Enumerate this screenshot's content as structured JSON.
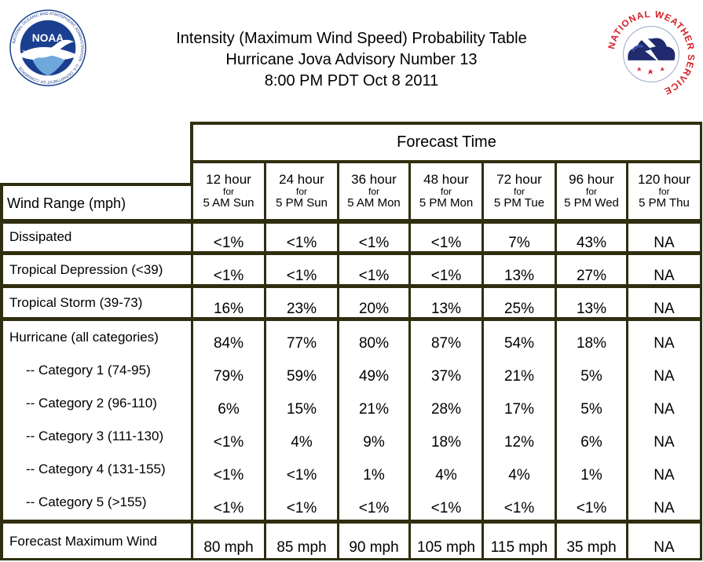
{
  "titles": {
    "line1": "Intensity (Maximum Wind Speed) Probability Table",
    "line2": "Hurricane Jova Advisory Number 13",
    "line3": "8:00 PM PDT Oct 8 2011"
  },
  "logos": {
    "left": {
      "text": "NOAA",
      "ring_text": "NATIONAL OCEANIC AND ATMOSPHERIC ADMINISTRATION · U.S. DEPARTMENT OF COMMERCE"
    },
    "right": {
      "ring_text": "NATIONAL WEATHER SERVICE"
    }
  },
  "colors": {
    "border": "#2f2f10",
    "noaa_blue": "#1a3f8f",
    "nws_red": "#d4202a",
    "nws_navy": "#1f2b6e"
  },
  "table": {
    "forecast_time_label": "Forecast Time",
    "wind_range_label": "Wind Range (mph)",
    "columns": [
      {
        "hours": "12 hour",
        "for": "for",
        "when": "5 AM Sun"
      },
      {
        "hours": "24 hour",
        "for": "for",
        "when": "5 PM Sun"
      },
      {
        "hours": "36 hour",
        "for": "for",
        "when": "5 AM Mon"
      },
      {
        "hours": "48 hour",
        "for": "for",
        "when": "5 PM Mon"
      },
      {
        "hours": "72 hour",
        "for": "for",
        "when": "5 PM Tue"
      },
      {
        "hours": "96 hour",
        "for": "for",
        "when": "5 PM Wed"
      },
      {
        "hours": "120 hour",
        "for": "for",
        "when": "5 PM Thu"
      }
    ],
    "rows": [
      {
        "label": "Dissipated",
        "values": [
          "<1%",
          "<1%",
          "<1%",
          "<1%",
          "7%",
          "43%",
          "NA"
        ]
      },
      {
        "label": "Tropical Depression (<39)",
        "values": [
          "<1%",
          "<1%",
          "<1%",
          "<1%",
          "13%",
          "27%",
          "NA"
        ]
      },
      {
        "label": "Tropical Storm (39-73)",
        "values": [
          "16%",
          "23%",
          "20%",
          "13%",
          "25%",
          "13%",
          "NA"
        ]
      },
      {
        "label": "Hurricane (all categories)",
        "values": [
          "84%",
          "77%",
          "80%",
          "87%",
          "54%",
          "18%",
          "NA"
        ]
      },
      {
        "label": "-- Category 1 (74-95)",
        "values": [
          "79%",
          "59%",
          "49%",
          "37%",
          "21%",
          "5%",
          "NA"
        ]
      },
      {
        "label": "-- Category 2 (96-110)",
        "values": [
          "6%",
          "15%",
          "21%",
          "28%",
          "17%",
          "5%",
          "NA"
        ]
      },
      {
        "label": "-- Category 3 (111-130)",
        "values": [
          "<1%",
          "4%",
          "9%",
          "18%",
          "12%",
          "6%",
          "NA"
        ]
      },
      {
        "label": "-- Category 4 (131-155)",
        "values": [
          "<1%",
          "<1%",
          "1%",
          "4%",
          "4%",
          "1%",
          "NA"
        ]
      },
      {
        "label": "-- Category 5 (>155)",
        "values": [
          "<1%",
          "<1%",
          "<1%",
          "<1%",
          "<1%",
          "<1%",
          "NA"
        ]
      },
      {
        "label": "Forecast Maximum Wind",
        "values": [
          "80 mph",
          "85 mph",
          "90 mph",
          "105 mph",
          "115 mph",
          "35 mph",
          "NA"
        ]
      }
    ]
  }
}
